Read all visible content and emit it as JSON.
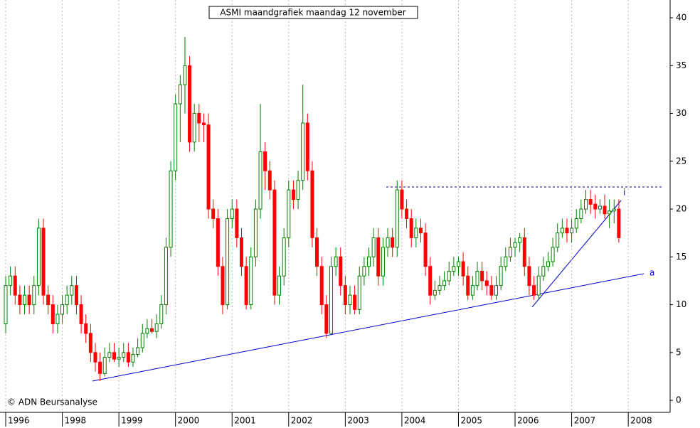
{
  "chart_data": {
    "type": "candlestick",
    "title": "ASMI maandgrafiek maandag 12 november",
    "annotations": [
      "© ADN Beursanalyse",
      "a",
      "i"
    ],
    "categories": [
      "1996",
      null,
      null,
      null,
      null,
      null,
      null,
      null,
      null,
      null,
      null,
      null,
      "1998",
      null,
      null,
      null,
      null,
      null,
      null,
      null,
      null,
      null,
      null,
      null,
      "1999",
      null,
      null,
      null,
      null,
      null,
      null,
      null,
      null,
      null,
      null,
      null,
      "2000",
      null,
      null,
      null,
      null,
      null,
      null,
      null,
      null,
      null,
      null,
      null,
      "2001",
      null,
      null,
      null,
      null,
      null,
      null,
      null,
      null,
      null,
      null,
      null,
      "2002",
      null,
      null,
      null,
      null,
      null,
      null,
      null,
      null,
      null,
      null,
      null,
      "2003",
      null,
      null,
      null,
      null,
      null,
      null,
      null,
      null,
      null,
      null,
      null,
      "2004",
      null,
      null,
      null,
      null,
      null,
      null,
      null,
      null,
      null,
      null,
      null,
      "2005",
      null,
      null,
      null,
      null,
      null,
      null,
      null,
      null,
      null,
      null,
      null,
      "2006",
      null,
      null,
      null,
      null,
      null,
      null,
      null,
      null,
      null,
      null,
      null,
      "2007",
      null,
      null,
      null,
      null,
      null,
      null,
      null,
      null,
      null,
      null,
      null,
      "2008"
    ],
    "open": [
      8,
      12,
      13,
      11,
      10,
      11,
      10,
      12,
      18,
      11,
      10,
      8,
      9,
      10,
      11,
      12,
      10,
      8,
      7,
      5,
      4,
      2.8,
      4.5,
      5,
      4.3,
      4.5,
      5,
      4,
      4.8,
      5.5,
      7,
      7.5,
      7.2,
      8,
      10,
      16,
      24,
      31,
      33,
      35,
      27,
      30,
      29,
      28.8,
      20,
      19,
      14,
      10,
      19,
      20,
      17,
      14,
      10,
      15,
      20,
      26,
      24,
      22,
      11,
      13,
      17,
      22,
      21,
      23,
      29,
      24,
      17,
      14,
      10,
      7,
      14,
      15,
      12,
      10,
      11,
      9.5,
      13,
      14,
      15,
      17,
      13,
      16,
      17,
      16,
      22,
      20,
      19,
      17,
      18,
      17.5,
      14,
      11,
      11.5,
      12,
      12.5,
      13.5,
      14,
      14.5,
      13,
      11,
      12,
      13.5,
      12.5,
      12,
      11,
      12,
      14,
      15,
      16,
      16.5,
      17,
      14,
      12,
      11,
      13,
      14,
      14.5,
      16,
      17.5,
      18,
      17.5,
      18,
      19,
      20,
      21,
      20.5,
      20,
      20.3,
      19.5,
      19.8,
      20,
      null,
      null
    ],
    "high": [
      13,
      14,
      14,
      12,
      12,
      12,
      13,
      19,
      19,
      12,
      11,
      10,
      11,
      12,
      13,
      13,
      11,
      9,
      8,
      6,
      5,
      5.5,
      6,
      6,
      5.5,
      6,
      6,
      5.5,
      6.5,
      8,
      8.5,
      8.5,
      9,
      11,
      17,
      25,
      32,
      34,
      38,
      36,
      31,
      31,
      30,
      30,
      21,
      20,
      15,
      20,
      21,
      21,
      18,
      15,
      16,
      21,
      31,
      27,
      25,
      23,
      14,
      18,
      23,
      23,
      24,
      33,
      30,
      25,
      18,
      15,
      11,
      15,
      16,
      16,
      13,
      12,
      12,
      14,
      15,
      16,
      18,
      18,
      17,
      18,
      18,
      23,
      23,
      21,
      20,
      19,
      19,
      18.5,
      15,
      12.5,
      13,
      13.5,
      14.5,
      15,
      15,
      15.5,
      14,
      13,
      14.5,
      14.5,
      13.5,
      13,
      13,
      15,
      16,
      17,
      17,
      17.5,
      18,
      15,
      13,
      14,
      15,
      15.5,
      17,
      18.5,
      19,
      19,
      19,
      20,
      21,
      22,
      22,
      21.5,
      21,
      21.5,
      21,
      21,
      21,
      null,
      null
    ],
    "low": [
      7,
      11,
      10,
      9,
      9,
      9,
      9,
      11,
      10,
      9,
      7,
      7,
      8,
      9,
      10,
      9,
      7,
      6,
      4,
      3,
      2,
      2.5,
      4,
      4,
      3.5,
      4,
      3.5,
      3.5,
      4.5,
      5,
      6.5,
      7,
      6.5,
      7.5,
      9,
      15,
      23,
      27,
      30,
      26,
      26,
      27,
      27,
      19,
      18,
      13,
      9,
      9.5,
      18,
      16,
      13,
      9.5,
      9.5,
      14,
      19,
      22,
      21,
      10,
      10,
      12,
      16,
      20,
      20,
      22,
      23,
      16,
      13,
      9,
      6.5,
      6.8,
      13,
      11,
      9,
      9,
      9,
      9,
      12,
      13,
      14,
      12,
      12,
      15,
      15,
      15,
      19,
      18,
      16,
      16,
      16.5,
      13,
      10,
      10.5,
      11,
      11.5,
      12,
      13,
      13,
      12,
      10.5,
      10.5,
      11.5,
      11.5,
      11,
      10.5,
      10.5,
      11.5,
      13.5,
      14.5,
      15,
      15.5,
      13,
      11,
      10.5,
      10.5,
      12.5,
      13.5,
      14,
      15.5,
      17,
      16.5,
      16.5,
      17.5,
      18.5,
      19.5,
      19.5,
      19,
      19.5,
      19,
      18,
      18.5,
      16.5,
      null,
      null
    ],
    "close": [
      12,
      13,
      11,
      10,
      11,
      10,
      12,
      18,
      11,
      10,
      8,
      9,
      10,
      11,
      12,
      10,
      8,
      7,
      5,
      4,
      2.8,
      4.5,
      5,
      4.3,
      4.5,
      5,
      4,
      4.8,
      5.5,
      7,
      7.5,
      7.2,
      8,
      10,
      16,
      24,
      31,
      33,
      35,
      27,
      30,
      29,
      28.8,
      20,
      19,
      14,
      10,
      19,
      20,
      17,
      14,
      10,
      15,
      20,
      26,
      24,
      22,
      11,
      13,
      17,
      22,
      21,
      23,
      29,
      24,
      17,
      14,
      10,
      7,
      14,
      15,
      12,
      10,
      11,
      9.5,
      13,
      14,
      15,
      17,
      13,
      16,
      17,
      16,
      22,
      20,
      19,
      17,
      18,
      17.5,
      14,
      11,
      11.5,
      12,
      12.5,
      13.5,
      14,
      14.5,
      13,
      11,
      12,
      13.5,
      12.5,
      12,
      11,
      12,
      14,
      15,
      16,
      16.5,
      17,
      14,
      12,
      11,
      13,
      14,
      14.5,
      16,
      17.5,
      18,
      17.5,
      18,
      19,
      20,
      21,
      20.5,
      20,
      20.3,
      19.5,
      19.8,
      20,
      17,
      null,
      null
    ],
    "up_color": "#008000",
    "down_color": "#ff0000",
    "ylim": [
      -1.26,
      41.86
    ],
    "yticks": [
      0,
      5,
      10,
      15,
      20,
      25,
      30,
      35,
      40
    ],
    "grid": true
  }
}
